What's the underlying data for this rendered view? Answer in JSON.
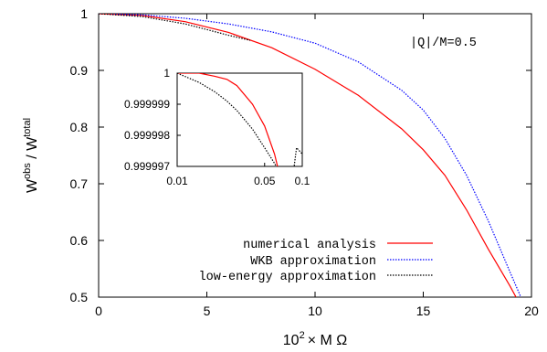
{
  "chart_data": {
    "type": "line",
    "main": {
      "xlabel": "10",
      "xlabel_sup": "2",
      "xlabel_rest": "× M Ω",
      "ylabel_base": "W",
      "ylabel_sup1": "obs",
      "ylabel_mid": " / W",
      "ylabel_sup2": "total",
      "xlim": [
        0,
        20
      ],
      "ylim": [
        0.5,
        1.0
      ],
      "xticks": [
        0,
        5,
        10,
        15,
        20
      ],
      "xtick_labels": [
        "0",
        "5",
        "10",
        "15",
        "20"
      ],
      "yticks": [
        0.5,
        0.6,
        0.7,
        0.8,
        0.9,
        1.0
      ],
      "ytick_labels": [
        "0.5",
        "0.6",
        "0.7",
        "0.8",
        "0.9",
        "1"
      ],
      "annotation": "|Q|/M=0.5",
      "series": [
        {
          "name": "numerical analysis",
          "color": "#ff0000",
          "style": "solid",
          "x": [
            0,
            2,
            4,
            6,
            8,
            10,
            12,
            14,
            15,
            16,
            17,
            18,
            19,
            19.4
          ],
          "y": [
            1.0,
            0.997,
            0.986,
            0.967,
            0.94,
            0.902,
            0.856,
            0.797,
            0.76,
            0.715,
            0.654,
            0.585,
            0.52,
            0.492
          ]
        },
        {
          "name": "WKB approximation",
          "color": "#0000ff",
          "style": "dotted",
          "x": [
            0,
            2,
            4,
            6,
            8,
            10,
            12,
            14,
            15,
            16,
            17,
            18,
            19,
            19.6
          ],
          "y": [
            1.0,
            0.998,
            0.992,
            0.982,
            0.968,
            0.948,
            0.915,
            0.865,
            0.83,
            0.78,
            0.715,
            0.635,
            0.545,
            0.492
          ]
        },
        {
          "name": "low-energy approximation",
          "color": "#000000",
          "style": "dotted",
          "x": [
            0,
            2,
            4,
            6,
            7
          ],
          "y": [
            1.0,
            0.995,
            0.982,
            0.962,
            0.953
          ]
        }
      ]
    },
    "inset": {
      "xlim": [
        0.01,
        0.1
      ],
      "xscale": "log",
      "ylim": [
        0.999997,
        1.0
      ],
      "xticks": [
        0.01,
        0.05,
        0.1
      ],
      "xtick_labels": [
        "0.01",
        "0.05",
        "0.1"
      ],
      "yticks": [
        0.999997,
        0.999998,
        0.999999,
        1.0
      ],
      "ytick_labels": [
        "0.999997",
        "0.999998",
        "0.999999",
        "1"
      ],
      "series": [
        {
          "name": "numerical analysis",
          "color": "#ff0000",
          "style": "solid",
          "x": [
            0.01,
            0.015,
            0.02,
            0.025,
            0.03,
            0.04,
            0.05,
            0.06,
            0.07,
            0.08,
            0.09
          ],
          "y": [
            1.0,
            1.0,
            0.9999999,
            0.9999998,
            0.9999996,
            0.999999,
            0.9999983,
            0.9999974,
            0.9999963,
            0.999995,
            0.999997
          ]
        },
        {
          "name": "low-energy approximation",
          "color": "#000000",
          "style": "dotted",
          "x": [
            0.01,
            0.015,
            0.02,
            0.025,
            0.03,
            0.04,
            0.05,
            0.06,
            0.07,
            0.08,
            0.09,
            0.1
          ],
          "y": [
            1.0,
            0.9999997,
            0.9999994,
            0.9999991,
            0.9999988,
            0.9999982,
            0.9999976,
            0.9999971,
            0.9999966,
            0.999996,
            0.9999976,
            0.9999974
          ]
        }
      ]
    }
  }
}
